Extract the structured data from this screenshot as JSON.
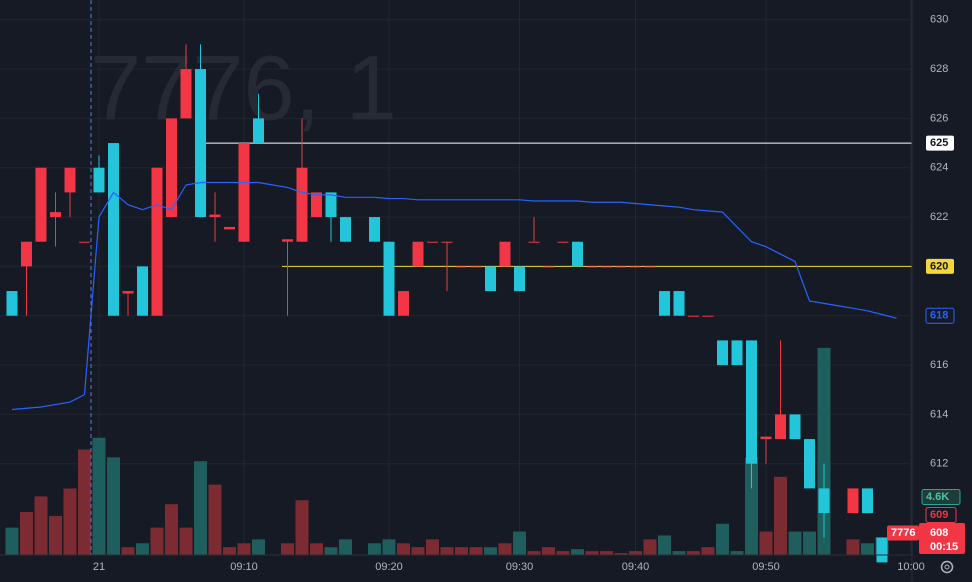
{
  "chart_data": {
    "type": "candlestick",
    "watermark": "7776, 1",
    "categories": [
      null,
      null,
      null,
      null,
      null,
      null,
      "21",
      null,
      null,
      null,
      null,
      null,
      null,
      null,
      null,
      null,
      "09:10",
      null,
      null,
      null,
      null,
      null,
      null,
      null,
      null,
      null,
      "09:20",
      null,
      null,
      null,
      null,
      null,
      null,
      null,
      null,
      "09:30",
      null,
      null,
      null,
      null,
      null,
      null,
      null,
      "09:40",
      null,
      null,
      null,
      null,
      null,
      null,
      null,
      null,
      "09:50",
      null,
      null,
      null,
      null,
      null,
      null,
      null,
      null,
      null,
      "10:00"
    ],
    "open": [
      619,
      620,
      621,
      622,
      623,
      621,
      624,
      625,
      618.9,
      620,
      618,
      622,
      626,
      628,
      622,
      621.5,
      621,
      626,
      null,
      621,
      621,
      622,
      623,
      622,
      null,
      622,
      621,
      618,
      620,
      621,
      621,
      620,
      620,
      620,
      620,
      620,
      621,
      620,
      621,
      621,
      620,
      620,
      620,
      620,
      620,
      619,
      619,
      618,
      618,
      617,
      617,
      617,
      613,
      613,
      614,
      613,
      611,
      null,
      610,
      611,
      609,
      null,
      null
    ],
    "high": [
      619,
      621,
      624,
      623,
      624,
      621,
      624.5,
      625,
      619,
      620,
      624,
      626,
      629,
      629,
      623,
      621.6,
      625,
      627,
      null,
      621.1,
      626,
      623,
      623,
      622,
      null,
      622,
      621,
      619,
      621,
      621,
      621,
      620,
      620,
      620,
      621,
      620,
      622,
      620,
      621,
      621,
      620,
      620,
      620,
      620,
      620,
      619,
      619,
      618,
      618,
      617,
      617,
      617,
      613.1,
      617,
      614,
      613,
      612,
      null,
      611,
      611,
      609,
      null,
      null
    ],
    "low": [
      618,
      618,
      621,
      620.8,
      622,
      621,
      623,
      618,
      618,
      618,
      618,
      622,
      626,
      622,
      621,
      621.5,
      621,
      625,
      null,
      618,
      621,
      622,
      621,
      621,
      null,
      621,
      618,
      618,
      620,
      621,
      619,
      620,
      620,
      619,
      620,
      619,
      621,
      620,
      621,
      620,
      620,
      620,
      620,
      620,
      620,
      618,
      618,
      618,
      618,
      616,
      616,
      611,
      612,
      613,
      613,
      611,
      609,
      null,
      610,
      610,
      608,
      null,
      null
    ],
    "close": [
      618,
      621,
      624,
      622.2,
      624,
      621,
      623,
      618,
      619,
      618,
      624,
      626,
      628,
      622,
      622.1,
      621.6,
      625,
      625,
      null,
      621.1,
      624,
      623,
      622,
      621,
      null,
      621,
      618,
      619,
      621,
      621,
      621,
      620,
      620,
      619,
      621,
      619,
      621,
      620,
      621,
      620,
      620,
      620,
      620,
      620,
      620,
      618,
      618,
      618,
      618,
      616,
      616,
      612,
      613.1,
      614,
      613,
      611,
      610,
      null,
      611,
      610,
      608,
      null,
      null
    ],
    "volume": [
      7000,
      11000,
      15000,
      10000,
      17000,
      27000,
      30000,
      25000,
      2000,
      3000,
      7000,
      13000,
      7000,
      24000,
      18000,
      2000,
      3000,
      4000,
      null,
      3000,
      14000,
      3000,
      2000,
      4000,
      null,
      3000,
      4000,
      3000,
      2000,
      4000,
      2000,
      2000,
      2000,
      2000,
      3000,
      6000,
      1000,
      2000,
      1000,
      1500,
      1000,
      1000,
      500,
      1000,
      4000,
      5000,
      1000,
      1000,
      2000,
      8000,
      1000,
      25000,
      6000,
      20000,
      6000,
      6000,
      53000,
      null,
      4000,
      3000,
      4600,
      null,
      null
    ],
    "ma": {
      "color": "#2962ff",
      "values": [
        614.2,
        614.25,
        614.3,
        614.4,
        614.5,
        614.8,
        622,
        623,
        622.5,
        622.3,
        622.5,
        622.3,
        623.3,
        623.4,
        623.4,
        623.4,
        623.4,
        623.4,
        623.3,
        623.2,
        623,
        622.9,
        622.9,
        622.8,
        622.8,
        622.8,
        622.75,
        622.75,
        622.7,
        622.7,
        622.7,
        622.7,
        622.7,
        622.7,
        622.7,
        622.7,
        622.65,
        622.65,
        622.65,
        622.65,
        622.6,
        622.6,
        622.6,
        622.55,
        622.5,
        622.45,
        622.4,
        622.3,
        622.25,
        622.2,
        621.6,
        621,
        620.8,
        620.5,
        620.2,
        618.6,
        618.5,
        618.4,
        618.3,
        618.2,
        618.05,
        617.9,
        null
      ],
      "last_value": 618
    },
    "up_color": "#f23645",
    "down_color": "#22c5d9",
    "up_volume_color": "#7d2b33",
    "down_volume_color": "#1e5e5c",
    "price_lines": [
      {
        "value": 625,
        "color": "#ffffff",
        "start": 13
      },
      {
        "value": 620,
        "color": "#f5d63d",
        "start": 19
      }
    ],
    "price_marker": 609,
    "volume_last_label": "4.6K",
    "symbol": "7776",
    "last_price": 608,
    "countdown": "00:15",
    "ylim": [
      608.3,
      630.8
    ],
    "yticks": [
      612,
      614,
      616,
      618,
      620,
      622,
      624,
      626,
      628,
      630
    ],
    "volume_lim": [
      0,
      142000
    ],
    "grid": true
  }
}
